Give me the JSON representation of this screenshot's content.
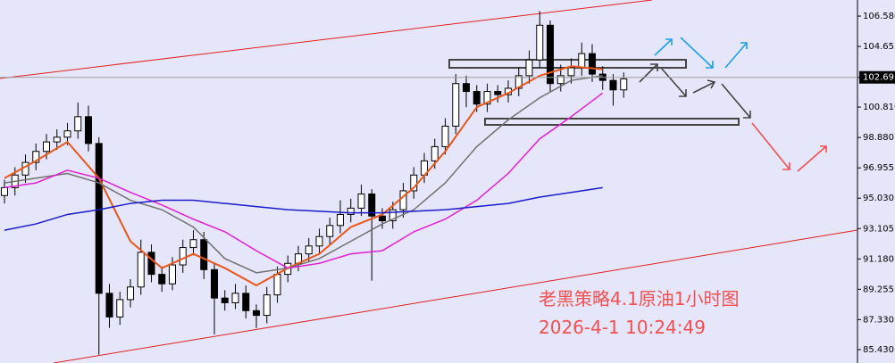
{
  "chart_data": {
    "type": "candlestick",
    "annotations": [
      "老黑策略4.1原油1小时图",
      "2026-4-1 10:24:49"
    ],
    "ylim": [
      84.58,
      107.6
    ],
    "yticks": [
      {
        "value": 106.58,
        "label": "106.580"
      },
      104.655,
      102.695,
      {
        "value": 100.81,
        "label": "100.810"
      },
      {
        "value": 98.88,
        "label": "98.880"
      },
      96.955,
      {
        "value": 95.03,
        "label": "95.030"
      },
      93.105,
      {
        "value": 91.18,
        "label": "91.180"
      },
      89.255,
      {
        "value": 87.33,
        "label": "87.330"
      },
      {
        "value": 85.43,
        "label": "85.430"
      }
    ],
    "current_tick": 2,
    "open": [
      95.2,
      95.7,
      96.5,
      97.3,
      98.0,
      98.6,
      98.9,
      99.3,
      100.2,
      98.5,
      89.0,
      87.5,
      88.6,
      89.4,
      91.6,
      90.2,
      89.6,
      90.8,
      91.9,
      92.4,
      90.5,
      88.7,
      88.4,
      89.0,
      87.9,
      87.6,
      88.9,
      90.2,
      90.9,
      91.5,
      92.0,
      92.6,
      93.3,
      94.0,
      94.4,
      95.3,
      93.9,
      93.6,
      94.3,
      95.5,
      96.5,
      97.4,
      98.3,
      99.6,
      102.3,
      101.8,
      101.0,
      101.8,
      101.6,
      102.0,
      102.8,
      103.8,
      106.0,
      102.3,
      102.8,
      103.3,
      104.2,
      102.9,
      102.5,
      101.9
    ],
    "high": [
      96.2,
      97.0,
      97.8,
      98.5,
      99.1,
      99.4,
      99.8,
      101.1,
      100.9,
      98.9,
      89.6,
      89.1,
      89.9,
      92.4,
      92.1,
      90.7,
      91.3,
      92.4,
      93.0,
      92.9,
      90.9,
      89.2,
      89.6,
      89.5,
      88.3,
      89.4,
      90.7,
      91.4,
      92.0,
      92.5,
      93.1,
      93.8,
      94.9,
      95.0,
      95.9,
      95.6,
      94.4,
      94.8,
      96.0,
      97.0,
      97.9,
      98.8,
      100.1,
      102.9,
      102.8,
      102.2,
      102.3,
      102.2,
      102.5,
      103.3,
      104.4,
      106.9,
      106.3,
      103.5,
      103.9,
      104.9,
      104.8,
      103.4,
      102.9,
      103.0
    ],
    "low": [
      94.7,
      95.2,
      96.0,
      96.8,
      97.5,
      98.1,
      98.4,
      98.8,
      98.0,
      85.1,
      86.8,
      87.0,
      88.1,
      88.9,
      89.7,
      89.1,
      89.2,
      90.3,
      91.4,
      89.9,
      86.4,
      87.9,
      88.0,
      87.4,
      86.8,
      87.1,
      88.4,
      89.7,
      90.4,
      91.0,
      91.5,
      92.1,
      92.8,
      93.5,
      93.9,
      89.8,
      93.1,
      93.1,
      93.8,
      95.0,
      96.0,
      96.9,
      97.8,
      99.1,
      100.8,
      100.5,
      100.5,
      101.1,
      101.1,
      101.5,
      102.3,
      103.3,
      101.8,
      101.8,
      102.3,
      102.8,
      102.4,
      101.9,
      100.9,
      101.4
    ],
    "close": [
      95.7,
      96.5,
      97.3,
      98.0,
      98.6,
      98.9,
      99.3,
      100.2,
      98.5,
      89.0,
      87.5,
      88.6,
      89.4,
      91.6,
      90.2,
      89.6,
      90.8,
      91.9,
      92.4,
      90.5,
      88.7,
      88.4,
      89.0,
      87.9,
      87.6,
      88.9,
      90.2,
      90.9,
      91.5,
      92.0,
      92.6,
      93.3,
      94.0,
      94.4,
      95.3,
      93.9,
      93.6,
      94.3,
      95.5,
      96.5,
      97.4,
      98.3,
      99.6,
      102.3,
      101.8,
      101.0,
      101.8,
      101.6,
      102.0,
      102.8,
      103.8,
      106.0,
      102.3,
      102.8,
      103.3,
      104.2,
      102.9,
      102.5,
      101.9,
      102.6
    ],
    "ma_x": [
      0,
      3,
      6,
      9,
      12,
      15,
      18,
      21,
      24,
      27,
      30,
      33,
      36,
      39,
      42,
      45,
      48,
      51,
      54,
      57
    ],
    "series": [
      {
        "color": "#e8561a",
        "values": [
          96.3,
          97.4,
          98.6,
          96.3,
          92.3,
          90.6,
          91.5,
          90.6,
          89.5,
          90.6,
          91.5,
          93.2,
          94.0,
          95.7,
          98.0,
          100.8,
          101.7,
          102.8,
          103.4,
          103.2
        ]
      },
      {
        "color": "#707070",
        "values": [
          96.0,
          96.3,
          96.6,
          96.0,
          94.9,
          94.3,
          93.2,
          91.2,
          90.3,
          90.6,
          91.2,
          92.3,
          93.4,
          94.3,
          96.0,
          98.3,
          100.0,
          101.4,
          102.5,
          102.8
        ]
      },
      {
        "color": "#e020d0",
        "values": [
          95.7,
          96.0,
          96.8,
          96.3,
          95.4,
          94.6,
          93.7,
          92.9,
          91.7,
          90.6,
          90.9,
          91.5,
          91.7,
          92.9,
          93.7,
          94.9,
          96.6,
          98.8,
          100.2,
          101.7
        ]
      },
      {
        "color": "#1a1ac8",
        "values": [
          93.0,
          93.4,
          94.0,
          94.3,
          94.7,
          94.9,
          94.9,
          94.7,
          94.5,
          94.3,
          94.2,
          94.1,
          94.1,
          94.2,
          94.3,
          94.5,
          94.7,
          95.1,
          95.4,
          95.7
        ]
      }
    ]
  }
}
